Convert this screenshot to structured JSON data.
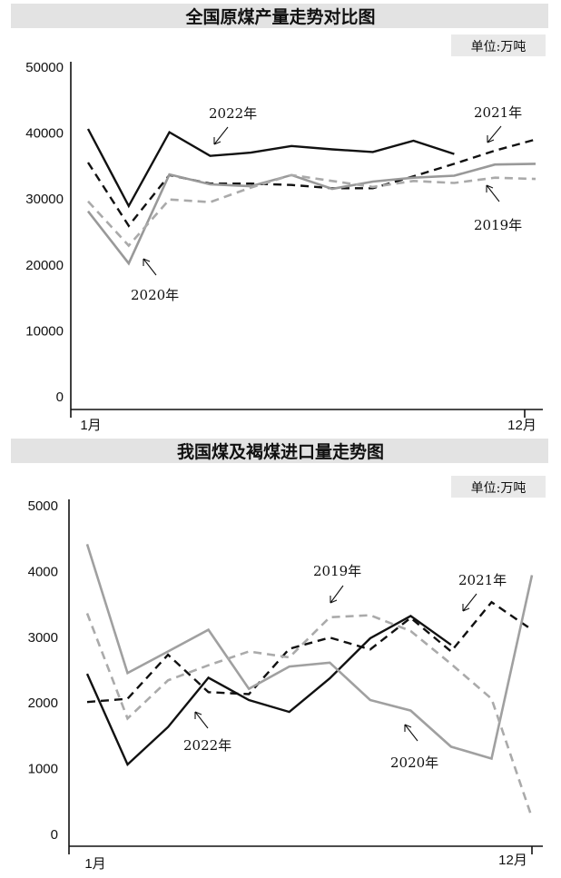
{
  "chart_data": [
    {
      "type": "line",
      "title": "全国原煤产量走势对比图",
      "unit": "单位:万吨",
      "x_start_label": "1月",
      "x_end_label": "12月",
      "yticks": [
        "0",
        "10000",
        "20000",
        "30000",
        "40000",
        "50000"
      ],
      "ylim": [
        0,
        50000
      ],
      "grid": false,
      "series": [
        {
          "name": "2022年",
          "color": "#111111",
          "dash": "solid",
          "values": [
            40500,
            28800,
            40000,
            36400,
            36900,
            37900,
            37400,
            37000,
            38700,
            36700,
            null,
            null
          ]
        },
        {
          "name": "2021年",
          "color": "#111111",
          "dash": "dashed",
          "values": [
            35400,
            25800,
            33500,
            32200,
            32200,
            32000,
            31500,
            31500,
            33300,
            35200,
            37200,
            38900
          ]
        },
        {
          "name": "2020年",
          "color": "#999999",
          "dash": "solid",
          "values": [
            28000,
            20100,
            33600,
            32100,
            31800,
            33500,
            31400,
            32500,
            33100,
            33400,
            35100,
            35200
          ]
        },
        {
          "name": "2019年",
          "color": "#aaaaaa",
          "dash": "dashed",
          "values": [
            29500,
            22800,
            29800,
            29400,
            31600,
            33500,
            32600,
            31700,
            32600,
            32300,
            33100,
            32900
          ]
        }
      ]
    },
    {
      "type": "line",
      "title": "我国煤及褐煤进口量走势图",
      "unit": "单位:万吨",
      "x_start_label": "1月",
      "x_end_label": "12月",
      "yticks": [
        "0",
        "1000",
        "2000",
        "3000",
        "4000",
        "5000"
      ],
      "ylim": [
        0,
        5000
      ],
      "grid": false,
      "series": [
        {
          "name": "2022年",
          "color": "#111111",
          "dash": "solid",
          "values": [
            2430,
            1050,
            1620,
            2370,
            2030,
            1850,
            2360,
            2970,
            3310,
            2870,
            null,
            null
          ]
        },
        {
          "name": "2021年",
          "color": "#111111",
          "dash": "dashed",
          "values": [
            2000,
            2050,
            2720,
            2150,
            2120,
            2810,
            2980,
            2800,
            3280,
            2770,
            3520,
            3100
          ]
        },
        {
          "name": "2020年",
          "color": "#a0a0a0",
          "dash": "solid",
          "values": [
            4400,
            2440,
            2770,
            3100,
            2200,
            2540,
            2600,
            2030,
            1870,
            1320,
            1140,
            3930
          ]
        },
        {
          "name": "2019年",
          "color": "#aaaaaa",
          "dash": "dashed",
          "values": [
            3350,
            1750,
            2330,
            2560,
            2770,
            2680,
            3290,
            3320,
            3080,
            2580,
            2050,
            240
          ]
        }
      ]
    }
  ]
}
